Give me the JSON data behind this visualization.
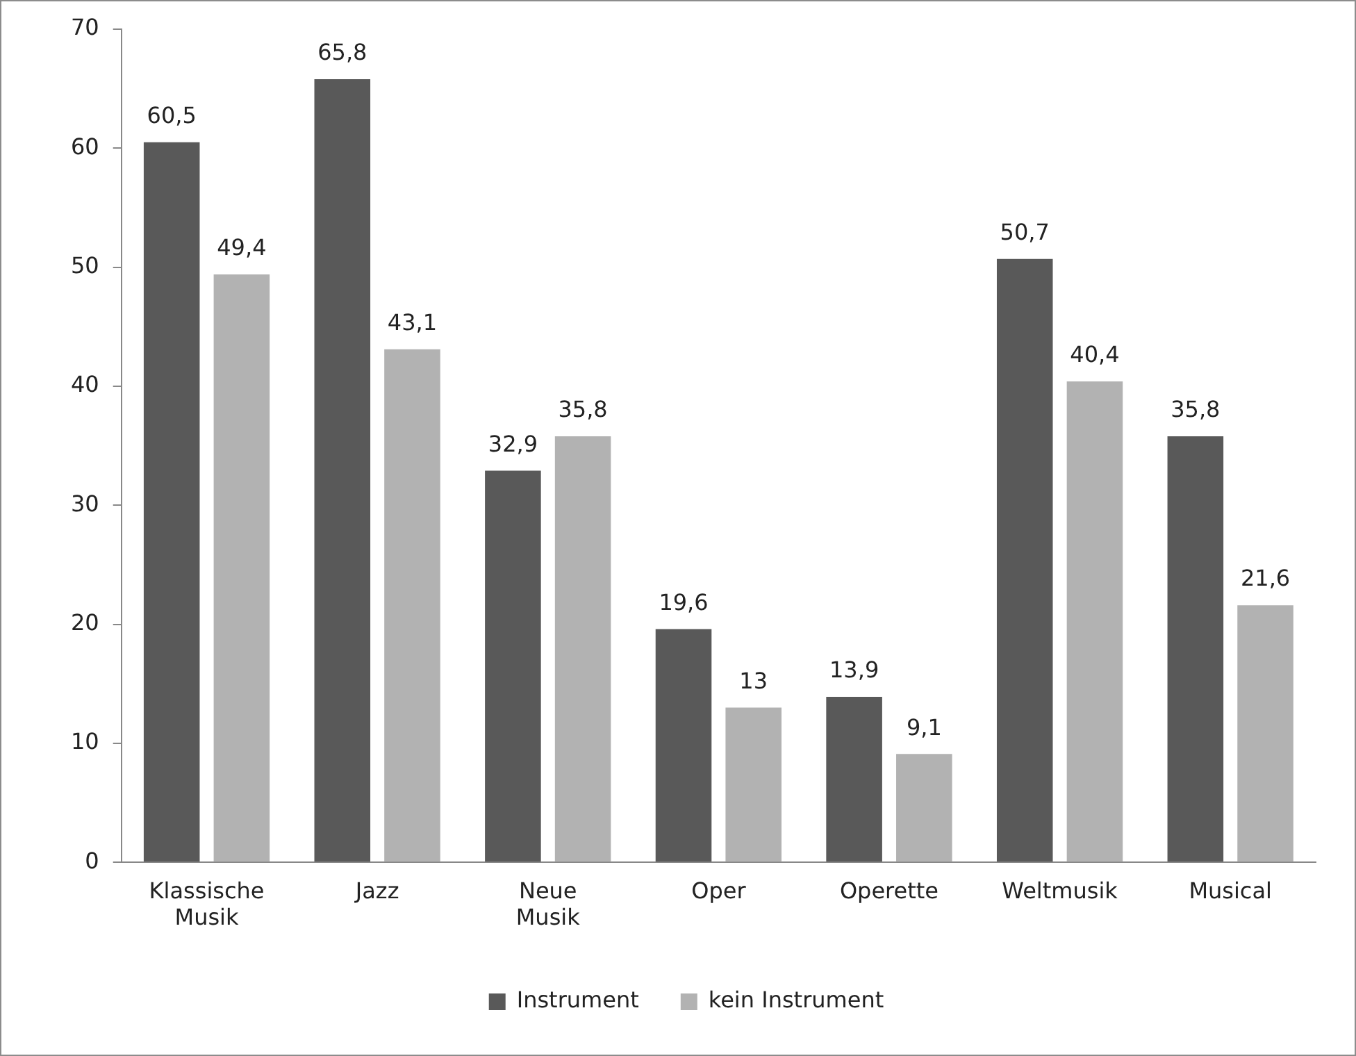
{
  "chart_data": {
    "type": "bar",
    "categories": [
      "Klassische Musik",
      "Jazz",
      "Neue Musik",
      "Oper",
      "Operette",
      "Weltmusik",
      "Musical"
    ],
    "series": [
      {
        "name": "Instrument",
        "color": "#595959",
        "values": [
          60.5,
          65.8,
          32.9,
          19.6,
          13.9,
          50.7,
          35.8
        ],
        "value_labels": [
          "60,5",
          "65,8",
          "32,9",
          "19,6",
          "13,9",
          "50,7",
          "35,8"
        ]
      },
      {
        "name": "kein Instrument",
        "color": "#b2b2b2",
        "values": [
          49.4,
          43.1,
          35.8,
          13,
          9.1,
          40.4,
          21.6
        ],
        "value_labels": [
          "49,4",
          "43,1",
          "35,8",
          "13",
          "9,1",
          "40,4",
          "21,6"
        ]
      }
    ],
    "ylim": [
      0,
      70
    ],
    "yticks": [
      0,
      10,
      20,
      30,
      40,
      50,
      60,
      70
    ],
    "grid": false,
    "legend": "bottom"
  }
}
